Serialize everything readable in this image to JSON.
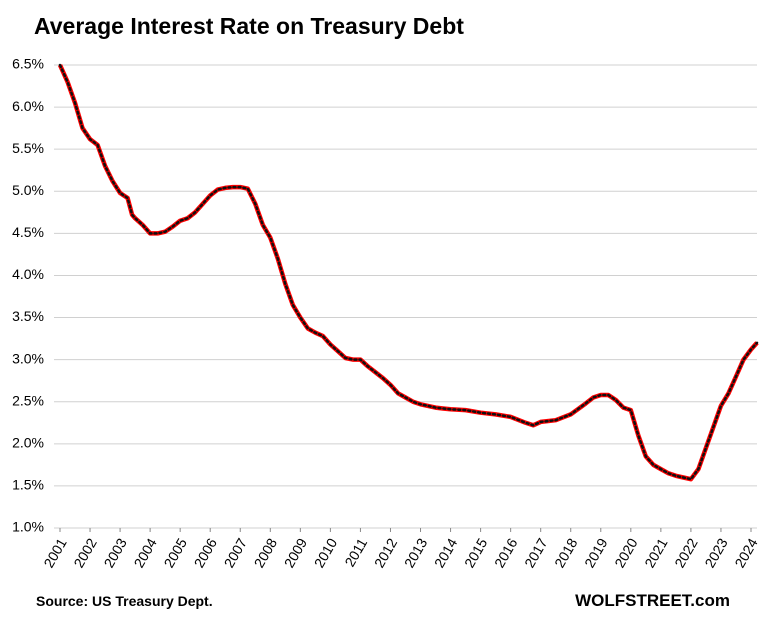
{
  "chart_data": {
    "type": "line",
    "title": "Average Interest Rate on Treasury Debt",
    "source": "Source: US Treasury Dept.",
    "credit": "WOLFSTREET.com",
    "x": [
      2001.0,
      2001.25,
      2001.5,
      2001.75,
      2002.0,
      2002.25,
      2002.5,
      2002.75,
      2003.0,
      2003.25,
      2003.4,
      2003.5,
      2003.75,
      2004.0,
      2004.25,
      2004.5,
      2004.75,
      2005.0,
      2005.25,
      2005.5,
      2005.75,
      2006.0,
      2006.25,
      2006.5,
      2006.75,
      2007.0,
      2007.25,
      2007.5,
      2007.75,
      2008.0,
      2008.25,
      2008.5,
      2008.75,
      2009.0,
      2009.25,
      2009.5,
      2009.75,
      2010.0,
      2010.25,
      2010.5,
      2010.75,
      2011.0,
      2011.25,
      2011.5,
      2011.75,
      2012.0,
      2012.25,
      2012.5,
      2012.75,
      2013.0,
      2013.25,
      2013.5,
      2013.75,
      2014.0,
      2014.5,
      2015.0,
      2015.5,
      2016.0,
      2016.5,
      2016.75,
      2017.0,
      2017.5,
      2018.0,
      2018.5,
      2018.75,
      2019.0,
      2019.25,
      2019.5,
      2019.75,
      2020.0,
      2020.25,
      2020.5,
      2020.75,
      2021.0,
      2021.25,
      2021.5,
      2021.75,
      2022.0,
      2022.25,
      2022.5,
      2022.75,
      2023.0,
      2023.25,
      2023.5,
      2023.75,
      2024.0,
      2024.2
    ],
    "series": [
      {
        "name": "Average interest rate",
        "color": "#ff0000",
        "values": [
          6.5,
          6.3,
          6.05,
          5.75,
          5.62,
          5.55,
          5.3,
          5.12,
          4.98,
          4.92,
          4.72,
          4.68,
          4.6,
          4.5,
          4.5,
          4.52,
          4.58,
          4.65,
          4.68,
          4.75,
          4.85,
          4.95,
          5.02,
          5.04,
          5.05,
          5.05,
          5.03,
          4.85,
          4.6,
          4.45,
          4.2,
          3.9,
          3.65,
          3.5,
          3.37,
          3.32,
          3.28,
          3.18,
          3.1,
          3.02,
          3.0,
          3.0,
          2.92,
          2.85,
          2.78,
          2.7,
          2.6,
          2.55,
          2.5,
          2.47,
          2.45,
          2.43,
          2.42,
          2.41,
          2.4,
          2.37,
          2.35,
          2.32,
          2.25,
          2.22,
          2.26,
          2.28,
          2.35,
          2.48,
          2.55,
          2.58,
          2.58,
          2.52,
          2.43,
          2.4,
          2.1,
          1.85,
          1.75,
          1.7,
          1.65,
          1.62,
          1.6,
          1.58,
          1.7,
          1.95,
          2.2,
          2.45,
          2.6,
          2.8,
          3.0,
          3.12,
          3.2
        ]
      }
    ],
    "xlim": [
      2001,
      2024.2
    ],
    "xticks": [
      2001,
      2002,
      2003,
      2004,
      2005,
      2006,
      2007,
      2008,
      2009,
      2010,
      2011,
      2012,
      2013,
      2014,
      2015,
      2016,
      2017,
      2018,
      2019,
      2020,
      2021,
      2022,
      2023,
      2024
    ],
    "ylim": [
      1.0,
      6.5
    ],
    "yticks": [
      {
        "value": 1.0,
        "label": "1.0%"
      },
      {
        "value": 1.5,
        "label": "1.5%"
      },
      {
        "value": 2.0,
        "label": "2.0%"
      },
      {
        "value": 2.5,
        "label": "2.5%"
      },
      {
        "value": 3.0,
        "label": "3.0%"
      },
      {
        "value": 3.5,
        "label": "3.5%"
      },
      {
        "value": 4.0,
        "label": "4.0%"
      },
      {
        "value": 4.5,
        "label": "4.5%"
      },
      {
        "value": 5.0,
        "label": "5.0%"
      },
      {
        "value": 5.5,
        "label": "5.5%"
      },
      {
        "value": 6.0,
        "label": "6.0%"
      },
      {
        "value": 6.5,
        "label": "6.5%"
      }
    ],
    "grid": true
  }
}
